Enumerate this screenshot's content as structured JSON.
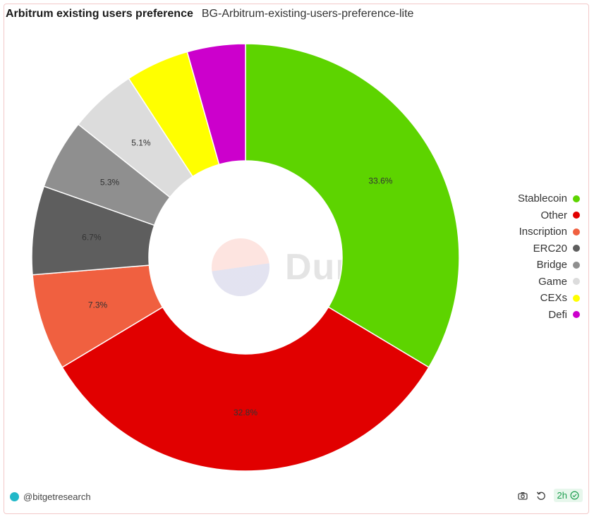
{
  "header": {
    "title": "Arbitrum existing users preference",
    "subtitle": "BG-Arbitrum-existing-users-preference-lite"
  },
  "watermark": {
    "text": "Dune"
  },
  "footer": {
    "author": "@bitgetresearch",
    "refresh_age": "2h"
  },
  "icons": {
    "camera": "camera-icon",
    "refresh": "refresh-icon",
    "check": "check-circle-icon"
  },
  "chart_data": {
    "type": "pie",
    "donut": true,
    "categories": [
      "Stablecoin",
      "Other",
      "Inscription",
      "ERC20",
      "Bridge",
      "Game",
      "CEXs",
      "Defi"
    ],
    "values": [
      33.6,
      32.8,
      7.3,
      6.7,
      5.3,
      5.1,
      4.8,
      4.4
    ],
    "labels": [
      "33.6%",
      "32.8%",
      "7.3%",
      "6.7%",
      "5.3%",
      "5.1%",
      "",
      ""
    ],
    "colors": [
      "#5dd400",
      "#e10000",
      "#f06040",
      "#5e5e5e",
      "#8f8f8f",
      "#dcdcdc",
      "#ffff00",
      "#cc00cc"
    ],
    "legend_position": "right"
  }
}
